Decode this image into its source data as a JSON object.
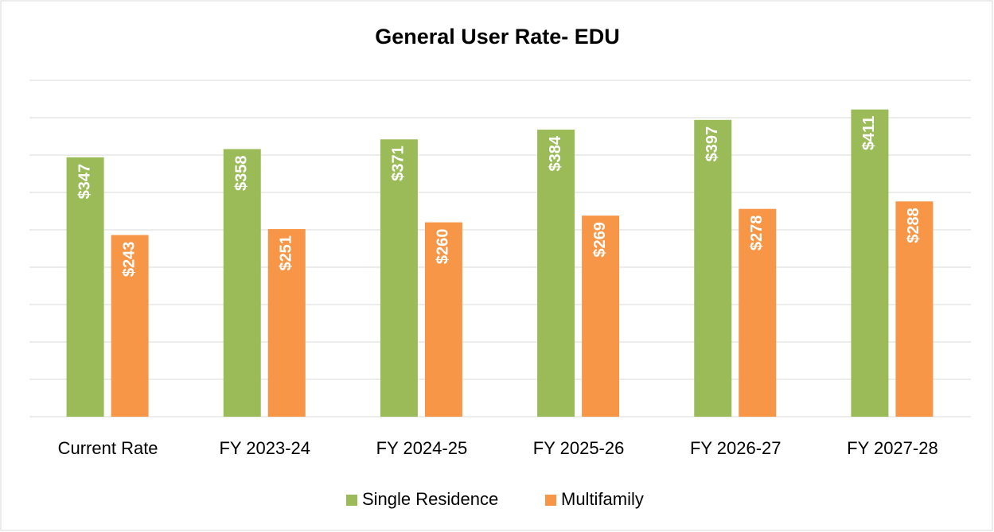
{
  "chart_data": {
    "type": "bar",
    "title": "General User Rate- EDU",
    "categories": [
      "Current Rate",
      "FY 2023-24",
      "FY 2024-25",
      "FY 2025-26",
      "FY 2026-27",
      "FY 2027-28"
    ],
    "series": [
      {
        "name": "Single Residence",
        "color": "#9bbb59",
        "values": [
          347,
          358,
          371,
          384,
          397,
          411
        ],
        "value_labels": [
          "$347",
          "$358",
          "$371",
          "$384",
          "$397",
          "$411"
        ]
      },
      {
        "name": "Multifamily",
        "color": "#f79646",
        "values": [
          243,
          251,
          260,
          269,
          278,
          288
        ],
        "value_labels": [
          "$243",
          "$251",
          "$260",
          "$269",
          "$278",
          "$288"
        ]
      }
    ],
    "ylim": [
      0,
      450
    ],
    "yticks": [
      0,
      50,
      100,
      150,
      200,
      250,
      300,
      350,
      400,
      450
    ],
    "grid": true,
    "legend": "bottom"
  }
}
